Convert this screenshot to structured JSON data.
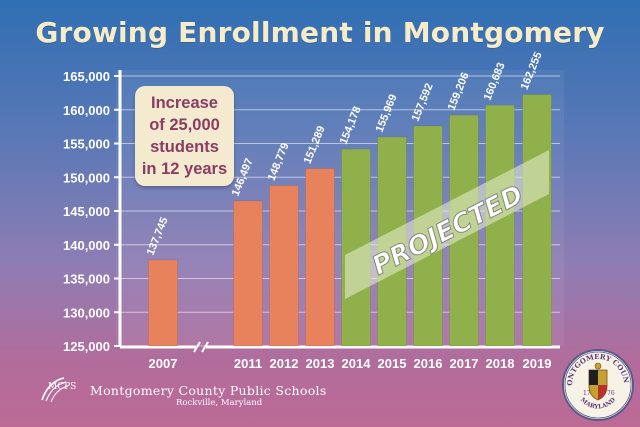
{
  "title": "Growing Enrollment in Montgomery",
  "callout": {
    "lines": [
      "Increase",
      "of 25,000",
      "students",
      "in 12 years"
    ]
  },
  "projected_label": "PROJECTED",
  "footer": {
    "logo_text": "MCPS",
    "org_name": "Montgomery County Public Schools",
    "location": "Rockville, Maryland"
  },
  "seal": {
    "text_top": "MONTGOMERY COUNTY",
    "text_bottom": "MARYLAND",
    "year_left": "17",
    "year_right": "76"
  },
  "colors": {
    "actual": "#e8825c",
    "projected": "#8fb04a",
    "title": "#f6ecc8",
    "callout_text": "#8b3c63",
    "axis": "#ffffff"
  },
  "chart_data": {
    "type": "bar",
    "title": "Growing Enrollment in Montgomery",
    "xlabel": "",
    "ylabel": "",
    "ylim": [
      125000,
      165000
    ],
    "yticks": [
      125000,
      130000,
      135000,
      140000,
      145000,
      150000,
      155000,
      160000,
      165000
    ],
    "ytick_labels": [
      "125,000",
      "130,000",
      "135,000",
      "140,000",
      "145,000",
      "150,000",
      "155,000",
      "160,000",
      "165,000"
    ],
    "categories": [
      "2007",
      "2011",
      "2012",
      "2013",
      "2014",
      "2015",
      "2016",
      "2017",
      "2018",
      "2019"
    ],
    "values": [
      137745,
      146497,
      148779,
      151289,
      154178,
      155969,
      157592,
      159206,
      160683,
      162255
    ],
    "value_labels": [
      "137,745",
      "146,497",
      "148,779",
      "151,289",
      "154,178",
      "155,969",
      "157,592",
      "159,206",
      "160,683",
      "162,255"
    ],
    "status": [
      "actual",
      "actual",
      "actual",
      "actual",
      "projected",
      "projected",
      "projected",
      "projected",
      "projected",
      "projected"
    ],
    "grid": true,
    "axis_break_after": "2007"
  }
}
